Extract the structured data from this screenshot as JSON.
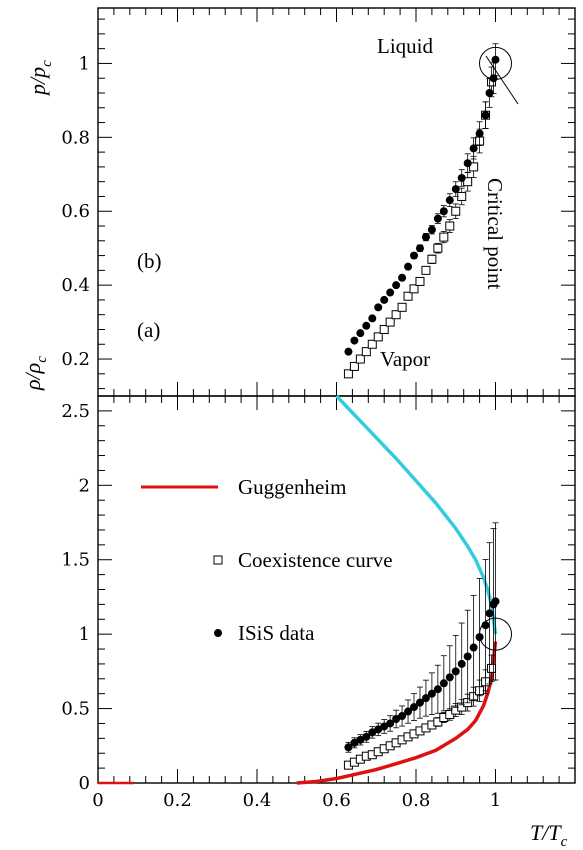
{
  "chart_data": [
    {
      "panel_label": "(a)",
      "type": "scatter",
      "ylabel": "p/p_c",
      "xlim": [
        0,
        1.2
      ],
      "ylim": [
        0.1,
        1.15
      ],
      "y_ticks": [
        "0.2",
        "0.4",
        "0.6",
        "0.8",
        "1"
      ],
      "annotations": [
        "Liquid",
        "Vapor",
        "Critical point"
      ],
      "series": [
        {
          "marker": "square-open",
          "x": [
            0.63,
            0.645,
            0.66,
            0.675,
            0.69,
            0.705,
            0.72,
            0.735,
            0.75,
            0.765,
            0.78,
            0.795,
            0.81,
            0.825,
            0.84,
            0.855,
            0.87,
            0.885,
            0.9,
            0.915,
            0.93,
            0.945,
            0.96,
            0.975,
            0.99
          ],
          "values": [
            0.16,
            0.18,
            0.2,
            0.22,
            0.24,
            0.26,
            0.28,
            0.3,
            0.32,
            0.34,
            0.37,
            0.39,
            0.41,
            0.44,
            0.47,
            0.5,
            0.53,
            0.56,
            0.6,
            0.64,
            0.68,
            0.72,
            0.79,
            0.86,
            0.95
          ]
        },
        {
          "marker": "circle-filled",
          "x": [
            0.63,
            0.645,
            0.66,
            0.675,
            0.69,
            0.705,
            0.72,
            0.735,
            0.75,
            0.765,
            0.78,
            0.795,
            0.81,
            0.825,
            0.84,
            0.855,
            0.87,
            0.885,
            0.9,
            0.915,
            0.93,
            0.945,
            0.96,
            0.975,
            0.985,
            0.995,
            1.0
          ],
          "values": [
            0.22,
            0.25,
            0.27,
            0.29,
            0.31,
            0.34,
            0.36,
            0.38,
            0.4,
            0.42,
            0.45,
            0.48,
            0.5,
            0.53,
            0.55,
            0.58,
            0.6,
            0.63,
            0.66,
            0.69,
            0.73,
            0.77,
            0.81,
            0.86,
            0.92,
            0.96,
            1.01
          ]
        }
      ]
    },
    {
      "panel_label": "(b)",
      "type": "scatter",
      "ylabel": "ρ/ρ_c",
      "xlabel": "T/T_c",
      "xlim": [
        0,
        1.2
      ],
      "ylim": [
        0,
        2.6
      ],
      "x_ticks": [
        "0",
        "0.2",
        "0.4",
        "0.6",
        "0.8",
        "1"
      ],
      "y_ticks": [
        "0",
        "0.5",
        "1",
        "1.5",
        "2",
        "2.5"
      ],
      "colors": {
        "guggenheim": "#dd1111",
        "upper_branch": "#33ccdd"
      },
      "legend": [
        {
          "label": "Guggenheim",
          "marker": "line"
        },
        {
          "label": "Coexistence curve",
          "marker": "square-open"
        },
        {
          "label": "ISiS data",
          "marker": "circle-filled"
        }
      ],
      "series": [
        {
          "name": "Coexistence curve",
          "marker": "square-open",
          "x": [
            0.63,
            0.645,
            0.66,
            0.675,
            0.69,
            0.705,
            0.72,
            0.735,
            0.75,
            0.765,
            0.78,
            0.795,
            0.81,
            0.825,
            0.84,
            0.855,
            0.87,
            0.885,
            0.9,
            0.915,
            0.93,
            0.945,
            0.96,
            0.975,
            0.99
          ],
          "values": [
            0.12,
            0.14,
            0.16,
            0.18,
            0.19,
            0.21,
            0.23,
            0.25,
            0.27,
            0.29,
            0.31,
            0.33,
            0.35,
            0.37,
            0.39,
            0.41,
            0.44,
            0.46,
            0.49,
            0.51,
            0.54,
            0.58,
            0.62,
            0.68,
            0.77
          ]
        },
        {
          "name": "ISiS data",
          "marker": "circle-filled",
          "x": [
            0.63,
            0.645,
            0.66,
            0.675,
            0.69,
            0.705,
            0.72,
            0.735,
            0.75,
            0.765,
            0.78,
            0.795,
            0.81,
            0.825,
            0.84,
            0.855,
            0.87,
            0.885,
            0.9,
            0.915,
            0.93,
            0.945,
            0.96,
            0.975,
            0.985,
            0.995,
            1.0
          ],
          "values": [
            0.24,
            0.27,
            0.29,
            0.31,
            0.34,
            0.36,
            0.38,
            0.4,
            0.43,
            0.45,
            0.48,
            0.51,
            0.54,
            0.57,
            0.6,
            0.63,
            0.67,
            0.71,
            0.75,
            0.8,
            0.85,
            0.91,
            0.98,
            1.06,
            1.14,
            1.2,
            1.22
          ]
        },
        {
          "name": "Guggenheim",
          "marker": "line",
          "x": [
            0.5,
            0.55,
            0.6,
            0.65,
            0.7,
            0.75,
            0.8,
            0.85,
            0.9,
            0.93,
            0.95,
            0.97,
            0.98,
            0.99,
            1.0
          ],
          "values": [
            0.0,
            0.01,
            0.03,
            0.06,
            0.09,
            0.13,
            0.17,
            0.22,
            0.3,
            0.36,
            0.42,
            0.52,
            0.6,
            0.7,
            0.95
          ]
        },
        {
          "name": "upper branch",
          "marker": "line",
          "x": [
            0.6,
            0.65,
            0.7,
            0.75,
            0.8,
            0.85,
            0.9,
            0.93,
            0.95,
            0.97,
            0.98,
            0.99,
            1.0
          ],
          "values": [
            2.6,
            2.46,
            2.32,
            2.18,
            2.03,
            1.88,
            1.71,
            1.59,
            1.5,
            1.38,
            1.3,
            1.2,
            1.0
          ]
        }
      ]
    }
  ]
}
